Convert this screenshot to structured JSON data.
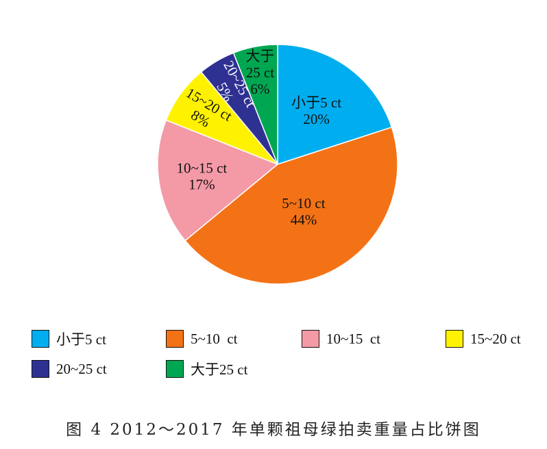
{
  "chart_data": {
    "type": "pie",
    "categories": [
      "小于5 ct",
      "5~10 ct",
      "10~15 ct",
      "15~20 ct",
      "20~25 ct",
      "大于25 ct"
    ],
    "values": [
      20,
      44,
      17,
      8,
      5,
      6
    ],
    "value_labels": [
      "20%",
      "44%",
      "17%",
      "8%",
      "5%",
      "6%"
    ],
    "slice_labels": [
      [
        "小于5 ct",
        "20%"
      ],
      [
        "5~10 ct",
        "44%"
      ],
      [
        "10~15 ct",
        "17%"
      ],
      [
        "15~20 ct",
        "8%"
      ],
      [
        "20~25 ct",
        "5%"
      ],
      [
        "大于",
        "25 ct",
        "6%"
      ]
    ],
    "colors": [
      "#00aeef",
      "#f47216",
      "#f49aa7",
      "#fff200",
      "#2e3192",
      "#00a651"
    ],
    "legend_labels": [
      "小于5 ct",
      "5~10  ct",
      "10~15  ct",
      "15~20 ct",
      "20~25 ct",
      "大于25 ct"
    ],
    "legend_position": "bottom",
    "start_angle": "12 o'clock",
    "direction": "clockwise"
  },
  "caption": "图 4  2012～2017 年单颗祖母绿拍卖重量占比饼图"
}
